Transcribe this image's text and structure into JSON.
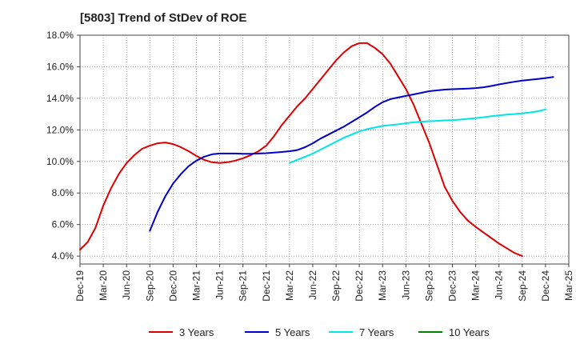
{
  "chart_data": {
    "type": "line",
    "title": "[5803]  Trend of StDev of ROE",
    "xlabel": "",
    "ylabel": "",
    "x_ticks": [
      "Dec-19",
      "Mar-20",
      "Jun-20",
      "Sep-20",
      "Dec-20",
      "Mar-21",
      "Jun-21",
      "Sep-21",
      "Dec-21",
      "Mar-22",
      "Jun-22",
      "Sep-22",
      "Dec-22",
      "Mar-23",
      "Jun-23",
      "Sep-23",
      "Dec-23",
      "Mar-24",
      "Jun-24",
      "Sep-24",
      "Dec-24",
      "Mar-25"
    ],
    "y_ticks": [
      "4.0%",
      "6.0%",
      "8.0%",
      "10.0%",
      "12.0%",
      "14.0%",
      "16.0%",
      "18.0%"
    ],
    "ylim": [
      3.5,
      18.0
    ],
    "grid": true,
    "legend_position": "bottom",
    "colors": {
      "3 Years": "#dd0000",
      "5 Years": "#0000cc",
      "7 Years": "#00e5e5",
      "10 Years": "#008000"
    },
    "series": [
      {
        "name": "3 Years",
        "start_index": 0,
        "values": [
          4.4,
          4.9,
          5.8,
          7.2,
          8.3,
          9.2,
          9.9,
          10.4,
          10.8,
          11.0,
          11.15,
          11.2,
          11.1,
          10.9,
          10.65,
          10.35,
          10.1,
          9.95,
          9.9,
          9.95,
          10.05,
          10.2,
          10.4,
          10.65,
          11.0,
          11.6,
          12.3,
          12.9,
          13.5,
          14.0,
          14.6,
          15.2,
          15.8,
          16.4,
          16.9,
          17.3,
          17.5,
          17.5,
          17.2,
          16.8,
          16.2,
          15.4,
          14.6,
          13.6,
          12.4,
          11.2,
          9.8,
          8.4,
          7.5,
          6.8,
          6.25,
          5.85,
          5.5,
          5.15,
          4.8,
          4.5,
          4.2,
          4.0
        ]
      },
      {
        "name": "5 Years",
        "start_index": 9,
        "values": [
          5.6,
          6.8,
          7.8,
          8.6,
          9.2,
          9.7,
          10.05,
          10.3,
          10.45,
          10.5,
          10.5,
          10.5,
          10.48,
          10.48,
          10.5,
          10.52,
          10.56,
          10.6,
          10.65,
          10.72,
          10.9,
          11.15,
          11.45,
          11.7,
          11.95,
          12.2,
          12.5,
          12.8,
          13.1,
          13.45,
          13.75,
          13.95,
          14.05,
          14.15,
          14.25,
          14.35,
          14.45,
          14.5,
          14.55,
          14.58,
          14.6,
          14.62,
          14.65,
          14.7,
          14.78,
          14.88,
          14.97,
          15.05,
          15.12,
          15.17,
          15.22,
          15.28,
          15.35
        ]
      },
      {
        "name": "7 Years",
        "start_index": 27,
        "values": [
          9.9,
          10.1,
          10.3,
          10.5,
          10.75,
          11.0,
          11.25,
          11.5,
          11.7,
          11.9,
          12.05,
          12.15,
          12.25,
          12.3,
          12.35,
          12.42,
          12.48,
          12.52,
          12.55,
          12.57,
          12.6,
          12.62,
          12.65,
          12.7,
          12.75,
          12.8,
          12.87,
          12.92,
          12.97,
          13.0,
          13.05,
          13.1,
          13.18,
          13.3
        ]
      },
      {
        "name": "10 Years",
        "start_index": 60,
        "values": []
      }
    ]
  }
}
